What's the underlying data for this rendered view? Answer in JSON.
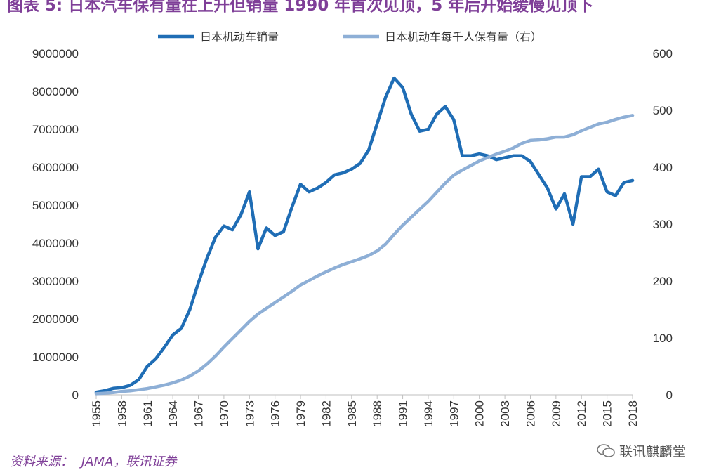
{
  "title": "图表 5: 日本汽车保有量在上升但销量 1990 年首次见顶，5 年后开始缓慢见顶下",
  "source": {
    "label": "资料来源：",
    "text": "JAMA，联讯证券"
  },
  "watermark": "联讯麒麟堂",
  "colors": {
    "sales": "#1f6db5",
    "ownership": "#8eafd6",
    "axis": "#bfbfbf",
    "title": "#7f3f98"
  },
  "chart_data": {
    "type": "line",
    "title": "",
    "xlabel": "",
    "ylabel": "",
    "x": [
      1955,
      1956,
      1957,
      1958,
      1959,
      1960,
      1961,
      1962,
      1963,
      1964,
      1965,
      1966,
      1967,
      1968,
      1969,
      1970,
      1971,
      1972,
      1973,
      1974,
      1975,
      1976,
      1977,
      1978,
      1979,
      1980,
      1981,
      1982,
      1983,
      1984,
      1985,
      1986,
      1987,
      1988,
      1989,
      1990,
      1991,
      1992,
      1993,
      1994,
      1995,
      1996,
      1997,
      1998,
      1999,
      2000,
      2001,
      2002,
      2003,
      2004,
      2005,
      2006,
      2007,
      2008,
      2009,
      2010,
      2011,
      2012,
      2013,
      2014,
      2015,
      2016,
      2017,
      2018
    ],
    "x_ticks": [
      "1955",
      "1958",
      "1961",
      "1964",
      "1967",
      "1970",
      "1973",
      "1976",
      "1979",
      "1982",
      "1985",
      "1988",
      "1991",
      "1994",
      "1997",
      "2000",
      "2003",
      "2006",
      "2009",
      "2012",
      "2015",
      "2018"
    ],
    "y_left_ticks": [
      "0",
      "1000000",
      "2000000",
      "3000000",
      "4000000",
      "5000000",
      "6000000",
      "7000000",
      "8000000",
      "9000000"
    ],
    "y_right_ticks": [
      "0",
      "100",
      "200",
      "300",
      "400",
      "500",
      "600"
    ],
    "y_left_lim": [
      0,
      9000000
    ],
    "y_right_lim": [
      0,
      600
    ],
    "legend_position": "top",
    "series": [
      {
        "name": "日本机动车销量",
        "axis": "left",
        "values": [
          70000,
          110000,
          170000,
          190000,
          250000,
          400000,
          750000,
          950000,
          1250000,
          1580000,
          1750000,
          2250000,
          2950000,
          3600000,
          4150000,
          4450000,
          4350000,
          4750000,
          5350000,
          3850000,
          4400000,
          4200000,
          4300000,
          4950000,
          5550000,
          5350000,
          5450000,
          5600000,
          5800000,
          5850000,
          5950000,
          6100000,
          6450000,
          7150000,
          7850000,
          8350000,
          8100000,
          7400000,
          6950000,
          7000000,
          7400000,
          7600000,
          7250000,
          6300000,
          6300000,
          6350000,
          6300000,
          6200000,
          6250000,
          6300000,
          6300000,
          6150000,
          5800000,
          5450000,
          4900000,
          5300000,
          4500000,
          5750000,
          5750000,
          5950000,
          5350000,
          5250000,
          5600000,
          5650000
        ]
      },
      {
        "name": "日本机动车每千人保有量（右）",
        "axis": "right",
        "values": [
          2,
          3,
          4,
          6,
          7,
          9,
          11,
          14,
          17,
          21,
          26,
          33,
          42,
          54,
          68,
          84,
          99,
          114,
          129,
          142,
          152,
          162,
          172,
          182,
          193,
          201,
          209,
          216,
          223,
          229,
          234,
          239,
          245,
          253,
          265,
          282,
          298,
          312,
          326,
          340,
          356,
          372,
          386,
          395,
          403,
          411,
          417,
          423,
          428,
          434,
          442,
          447,
          448,
          450,
          453,
          453,
          457,
          464,
          470,
          476,
          479,
          484,
          488,
          491
        ]
      }
    ]
  }
}
